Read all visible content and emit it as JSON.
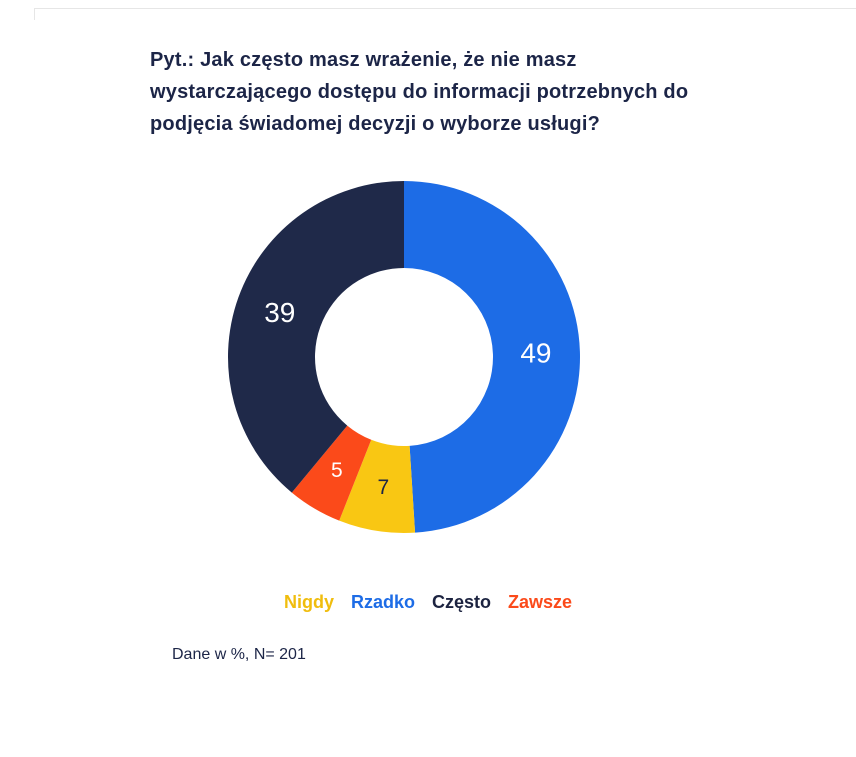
{
  "title": {
    "lines": [
      "Pyt.: Jak często masz wrażenie, że nie masz",
      "wystarczającego dostępu do informacji potrzebnych do",
      "podjęcia świadomej decyzji o wyborze usługi?"
    ],
    "color": "#1c2547"
  },
  "chart_data": {
    "type": "pie",
    "subtype": "donut",
    "title": "Pyt.: Jak często masz wrażenie, że nie masz wystarczającego dostępu do informacji potrzebnych do podjęcia świadomej decyzji o wyborze usługi?",
    "unit": "%",
    "start_angle_deg": 0,
    "direction": "clockwise",
    "segments": [
      {
        "label": "Rzadko",
        "value": 49,
        "value_label": "49",
        "color": "#1d6ce6",
        "value_label_color": "#ffffff"
      },
      {
        "label": "Nigdy",
        "value": 7,
        "value_label": "7",
        "color": "#f9c713",
        "value_label_color": "#1c2547"
      },
      {
        "label": "Zawsze",
        "value": 5,
        "value_label": "5",
        "color": "#fb4a1a",
        "value_label_color": "#ffffff"
      },
      {
        "label": "Często",
        "value": 39,
        "value_label": "39",
        "color": "#1f2949",
        "value_label_color": "#ffffff"
      }
    ],
    "legend_position": "bottom",
    "legend": [
      {
        "label": "Nigdy",
        "color": "#f0bd0e"
      },
      {
        "label": "Rzadko",
        "color": "#1d6ce6"
      },
      {
        "label": "Często",
        "color": "#1c2340"
      },
      {
        "label": "Zawsze",
        "color": "#fb4a1a"
      }
    ],
    "note": "Dane w %, N= 201"
  }
}
